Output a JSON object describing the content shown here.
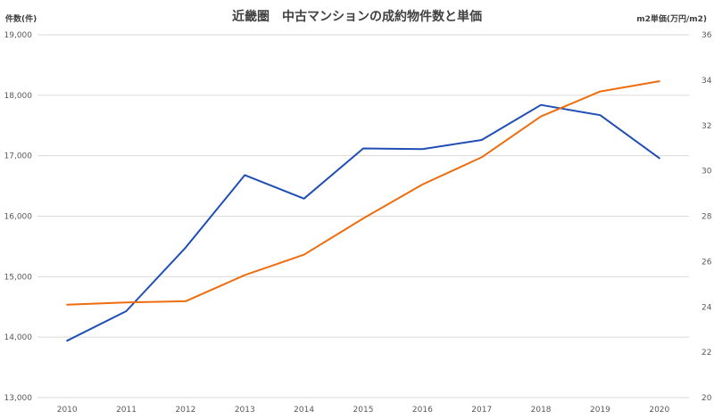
{
  "chart_data": {
    "type": "line",
    "title": "近畿圏　中古マンションの成約物件数と単価",
    "left_axis_title": "件数(件)",
    "right_axis_title": "m2単価(万円/m2)",
    "x": [
      "2010",
      "2011",
      "2012",
      "2013",
      "2014",
      "2015",
      "2016",
      "2017",
      "2018",
      "2019",
      "2020"
    ],
    "y_left": {
      "min": 13000,
      "max": 19000,
      "ticks": [
        "13,000",
        "14,000",
        "15,000",
        "16,000",
        "17,000",
        "18,000",
        "19,000"
      ]
    },
    "y_right": {
      "min": 20,
      "max": 36,
      "ticks": [
        "20",
        "22",
        "24",
        "26",
        "28",
        "30",
        "32",
        "34",
        "36"
      ]
    },
    "grid": true,
    "series": [
      {
        "axis": "left",
        "color": "#1f4fb4",
        "values": [
          13940,
          14430,
          15480,
          16680,
          16290,
          17120,
          17110,
          17260,
          17840,
          17670,
          16960
        ]
      },
      {
        "axis": "right",
        "color": "#ed6d0f",
        "values": [
          24.1,
          24.2,
          24.25,
          25.4,
          26.3,
          27.9,
          29.4,
          30.6,
          32.4,
          33.5,
          33.95
        ]
      }
    ]
  }
}
